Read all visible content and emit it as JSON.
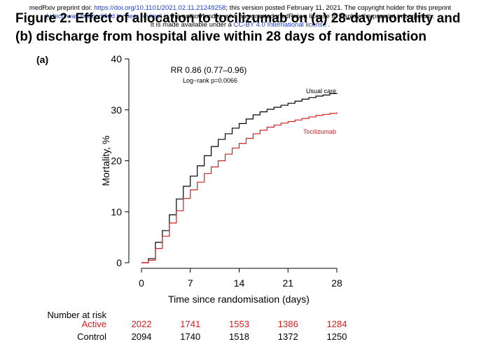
{
  "preprint_notice": {
    "line1_prefix": "medRxiv preprint doi: ",
    "doi_link": "https://doi.org/10.1101/2021.02.11.21249258",
    "line1_suffix": "; this version posted February 11, 2021. The copyright holder for this preprint",
    "line2_link": "(which was not certified by peer review)",
    "line2_suffix": " is the author/funder, who has granted medRxiv a license to display the preprint in perpetuity.",
    "line3_prefix": "It is made available under a ",
    "license_link": "CC-BY 4.0 International license",
    "line3_suffix": " ."
  },
  "title": {
    "line1": "Figure 2: Effect of allocation to tocilizumab on (a) 28-day mortality and",
    "line2": "(b) discharge from hospital alive within 28 days of randomisation"
  },
  "colors": {
    "usual_care": "#000000",
    "tocilizumab": "#d21f1f",
    "axis": "#000000"
  },
  "chart_data": {
    "type": "line",
    "panel_label": "(a)",
    "xlabel": "Time since randomisation (days)",
    "ylabel": "Mortality, %",
    "xlim": [
      0,
      28
    ],
    "ylim": [
      0,
      40
    ],
    "xticks": [
      0,
      7,
      14,
      21,
      28
    ],
    "yticks": [
      0,
      10,
      20,
      30,
      40
    ],
    "grid": false,
    "annotations": {
      "rr": "RR 0.86 (0.77–0.96)",
      "logrank": "Log−rank p=0.0066"
    },
    "series": [
      {
        "name": "Usual care",
        "color": "#000000",
        "x": [
          0,
          1,
          2,
          3,
          4,
          5,
          6,
          7,
          8,
          9,
          10,
          11,
          12,
          13,
          14,
          15,
          16,
          17,
          18,
          19,
          20,
          21,
          22,
          23,
          24,
          25,
          26,
          27,
          28
        ],
        "y": [
          0,
          0.8,
          4.0,
          6.3,
          9.4,
          12.5,
          15.0,
          17.0,
          19.0,
          21.0,
          22.8,
          24.2,
          25.3,
          26.4,
          27.3,
          28.2,
          29.0,
          29.6,
          30.1,
          30.5,
          30.9,
          31.3,
          31.7,
          32.1,
          32.4,
          32.7,
          32.9,
          33.2,
          33.3
        ]
      },
      {
        "name": "Tocilizumab",
        "color": "#d21f1f",
        "x": [
          0,
          1,
          2,
          3,
          4,
          5,
          6,
          7,
          8,
          9,
          10,
          11,
          12,
          13,
          14,
          15,
          16,
          17,
          18,
          19,
          20,
          21,
          22,
          23,
          24,
          25,
          26,
          27,
          28
        ],
        "y": [
          0,
          0.5,
          2.8,
          5.2,
          7.8,
          10.2,
          12.6,
          14.3,
          15.8,
          17.5,
          18.8,
          20.0,
          21.3,
          22.5,
          23.4,
          24.4,
          25.3,
          26.0,
          26.6,
          27.0,
          27.4,
          27.7,
          28.0,
          28.3,
          28.6,
          28.9,
          29.1,
          29.3,
          29.5
        ]
      }
    ],
    "risk_table": {
      "heading": "Number at risk",
      "days": [
        0,
        7,
        14,
        21,
        28
      ],
      "rows": [
        {
          "label": "Active",
          "color": "#d21f1f",
          "values": [
            "2022",
            "1741",
            "1553",
            "1386",
            "1284"
          ]
        },
        {
          "label": "Control",
          "color": "#000000",
          "values": [
            "2094",
            "1740",
            "1518",
            "1372",
            "1250"
          ]
        }
      ]
    }
  }
}
